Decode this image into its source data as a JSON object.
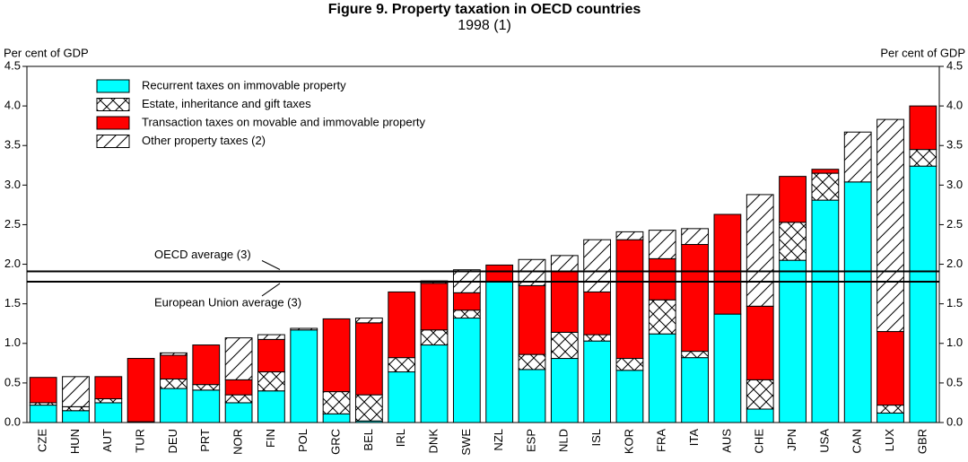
{
  "chart_data": {
    "type": "stacked_bar",
    "title": "Figure 9.  Property taxation in OECD countries",
    "subtitle": "1998 (1)",
    "ylabel": "Per cent of GDP",
    "y2label": "Per cent of GDP",
    "categories": [
      "CZE",
      "HUN",
      "AUT",
      "TUR",
      "DEU",
      "PRT",
      "NOR",
      "FIN",
      "POL",
      "GRC",
      "BEL",
      "IRL",
      "DNK",
      "SWE",
      "NZL",
      "ESP",
      "NLD",
      "ISL",
      "KOR",
      "FRA",
      "ITA",
      "AUS",
      "CHE",
      "JPN",
      "USA",
      "CAN",
      "LUX",
      "GBR"
    ],
    "series": [
      {
        "name": "Recurrent taxes on immovable property",
        "color": "#00ffff",
        "pattern": "solid",
        "values": [
          0.22,
          0.15,
          0.25,
          0.01,
          0.43,
          0.41,
          0.25,
          0.4,
          1.17,
          0.11,
          0.02,
          0.64,
          0.98,
          1.32,
          1.78,
          0.67,
          0.81,
          1.03,
          0.66,
          1.12,
          0.82,
          1.37,
          0.17,
          2.05,
          2.81,
          3.04,
          0.12,
          3.24
        ]
      },
      {
        "name": "Estate, inheritance and gift taxes",
        "color": "#ffffff",
        "pattern": "crosshatch",
        "values": [
          0.03,
          0.05,
          0.05,
          0,
          0.12,
          0.07,
          0.1,
          0.24,
          0,
          0.28,
          0.33,
          0.18,
          0.19,
          0.1,
          0,
          0.19,
          0.33,
          0.08,
          0.15,
          0.43,
          0.08,
          0,
          0.37,
          0.48,
          0.34,
          0,
          0.1,
          0.21
        ]
      },
      {
        "name": "Transaction taxes on movable and immovable property",
        "color": "#ff0000",
        "pattern": "solid",
        "values": [
          0.32,
          0,
          0.28,
          0.8,
          0.3,
          0.5,
          0.19,
          0.41,
          0,
          0.92,
          0.91,
          0.83,
          0.59,
          0.22,
          0.21,
          0.87,
          0.77,
          0.54,
          1.5,
          0.52,
          1.35,
          1.26,
          0.93,
          0.58,
          0.05,
          0,
          0.93,
          0.55
        ]
      },
      {
        "name": "Other property taxes (2)",
        "color": "#ffffff",
        "pattern": "diagonal",
        "values": [
          0,
          0.38,
          0,
          0,
          0.03,
          0,
          0.53,
          0.06,
          0.02,
          0,
          0.06,
          0,
          0.03,
          0.29,
          0,
          0.33,
          0.2,
          0.66,
          0.1,
          0.36,
          0.2,
          0,
          1.41,
          0,
          0,
          0.63,
          2.68,
          0
        ]
      }
    ],
    "reference_lines": [
      {
        "label": "OECD average (3)",
        "value": 1.91
      },
      {
        "label": "European Union average (3)",
        "value": 1.78
      }
    ],
    "ylim": [
      0,
      4.5
    ],
    "yticks": [
      {
        "value": 0,
        "label": "0.0"
      },
      {
        "value": 0.5,
        "label": "0.5"
      },
      {
        "value": 1,
        "label": "1.0"
      },
      {
        "value": 1.5,
        "label": "1.5"
      },
      {
        "value": 2,
        "label": "2.0"
      },
      {
        "value": 2.5,
        "label": "2.5"
      },
      {
        "value": 3,
        "label": "3.0"
      },
      {
        "value": 3.5,
        "label": "3.5"
      },
      {
        "value": 4,
        "label": "4.0"
      },
      {
        "value": 4.5,
        "label": "4.5"
      }
    ],
    "y2lim": [
      0,
      4.5
    ],
    "y2ticks": [
      {
        "value": 0,
        "label": "0.0"
      },
      {
        "value": 0.5,
        "label": "0.5"
      },
      {
        "value": 1,
        "label": "1.0"
      },
      {
        "value": 1.5,
        "label": "1.5"
      },
      {
        "value": 2,
        "label": "2.0"
      },
      {
        "value": 2.5,
        "label": "2.5"
      },
      {
        "value": 3,
        "label": "3.0"
      },
      {
        "value": 3.5,
        "label": "3.5"
      },
      {
        "value": 4,
        "label": "4.0"
      },
      {
        "value": 4.5,
        "label": "4.5"
      }
    ],
    "legend": "upper left",
    "grid": false
  }
}
